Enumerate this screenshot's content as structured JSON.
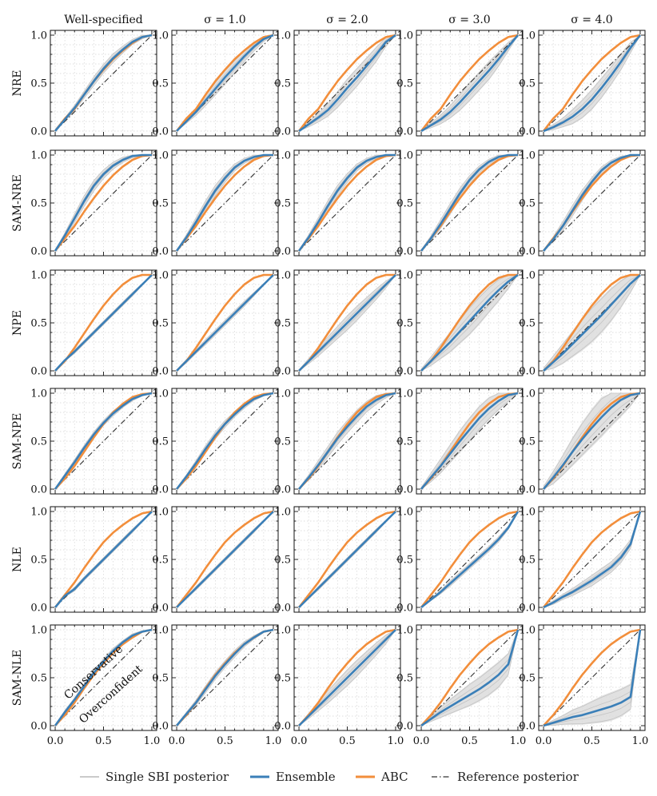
{
  "chart_data": {
    "type": "line",
    "title": "",
    "columns": [
      "Well-specified",
      "σ = 1.0",
      "σ = 2.0",
      "σ = 3.0",
      "σ = 4.0"
    ],
    "rows": [
      "NRE",
      "SAM-NRE",
      "NPE",
      "SAM-NPE",
      "NLE",
      "SAM-NLE"
    ],
    "x_ticks": [
      "0.0",
      "0.5",
      "1.0"
    ],
    "y_ticks": [
      "0.0",
      "0.5",
      "1.0"
    ],
    "xlim": [
      0,
      1
    ],
    "ylim": [
      0,
      1
    ],
    "grid": true,
    "annotations": [
      "Conservative",
      "Overconfident"
    ],
    "legend": [
      {
        "name": "Single SBI posterior",
        "color": "#b8b8b8"
      },
      {
        "name": "Ensemble",
        "color": "#3a7fb8"
      },
      {
        "name": "ABC",
        "color": "#f28e3b"
      },
      {
        "name": "Reference posterior",
        "color": "#333333"
      }
    ],
    "legend_position": "bottom",
    "x_grid": [
      0,
      0.1,
      0.2,
      0.3,
      0.4,
      0.5,
      0.6,
      0.7,
      0.8,
      0.9,
      1.0
    ],
    "abc_curves": [
      [
        [
          0,
          0
        ],
        [
          0.1,
          0.13
        ],
        [
          0.2,
          0.23
        ],
        [
          0.3,
          0.38
        ],
        [
          0.4,
          0.52
        ],
        [
          0.5,
          0.64
        ],
        [
          0.6,
          0.75
        ],
        [
          0.7,
          0.84
        ],
        [
          0.8,
          0.92
        ],
        [
          0.9,
          0.98
        ],
        [
          1,
          1
        ]
      ],
      [
        [
          0,
          0
        ],
        [
          0.1,
          0.13
        ],
        [
          0.2,
          0.26
        ],
        [
          0.3,
          0.41
        ],
        [
          0.4,
          0.55
        ],
        [
          0.5,
          0.68
        ],
        [
          0.6,
          0.79
        ],
        [
          0.7,
          0.88
        ],
        [
          0.8,
          0.95
        ],
        [
          0.9,
          0.99
        ],
        [
          1,
          1
        ]
      ],
      [
        [
          0,
          0
        ],
        [
          0.1,
          0.1
        ],
        [
          0.2,
          0.24
        ],
        [
          0.3,
          0.39
        ],
        [
          0.4,
          0.54
        ],
        [
          0.5,
          0.68
        ],
        [
          0.6,
          0.8
        ],
        [
          0.7,
          0.9
        ],
        [
          0.8,
          0.97
        ],
        [
          0.9,
          1
        ],
        [
          1,
          1
        ]
      ],
      [
        [
          0,
          0
        ],
        [
          0.1,
          0.11
        ],
        [
          0.2,
          0.24
        ],
        [
          0.3,
          0.39
        ],
        [
          0.4,
          0.54
        ],
        [
          0.5,
          0.68
        ],
        [
          0.6,
          0.8
        ],
        [
          0.7,
          0.89
        ],
        [
          0.8,
          0.96
        ],
        [
          0.9,
          0.99
        ],
        [
          1,
          1
        ]
      ],
      [
        [
          0,
          0
        ],
        [
          0.1,
          0.13
        ],
        [
          0.2,
          0.26
        ],
        [
          0.3,
          0.41
        ],
        [
          0.4,
          0.55
        ],
        [
          0.5,
          0.68
        ],
        [
          0.6,
          0.78
        ],
        [
          0.7,
          0.86
        ],
        [
          0.8,
          0.93
        ],
        [
          0.9,
          0.98
        ],
        [
          1,
          1
        ]
      ],
      [
        [
          0,
          0
        ],
        [
          0.1,
          0.11
        ],
        [
          0.2,
          0.24
        ],
        [
          0.3,
          0.39
        ],
        [
          0.4,
          0.53
        ],
        [
          0.5,
          0.65
        ],
        [
          0.6,
          0.76
        ],
        [
          0.7,
          0.85
        ],
        [
          0.8,
          0.92
        ],
        [
          0.9,
          0.98
        ],
        [
          1,
          1
        ]
      ]
    ],
    "series": [
      {
        "row": "NRE",
        "col": "Well-specified",
        "ensemble": [
          0,
          0.12,
          0.24,
          0.38,
          0.52,
          0.65,
          0.76,
          0.85,
          0.93,
          0.98,
          1
        ],
        "band": [
          0.02,
          0.02,
          0.03,
          0.04,
          0.05,
          0.05,
          0.05,
          0.04,
          0.03,
          0.02,
          0
        ]
      },
      {
        "row": "NRE",
        "col": "σ = 1.0",
        "ensemble": [
          0,
          0.1,
          0.2,
          0.32,
          0.44,
          0.56,
          0.67,
          0.78,
          0.88,
          0.96,
          1
        ],
        "band": [
          0.01,
          0.02,
          0.04,
          0.06,
          0.07,
          0.08,
          0.07,
          0.06,
          0.05,
          0.03,
          0
        ]
      },
      {
        "row": "NRE",
        "col": "σ = 2.0",
        "ensemble": [
          0,
          0.07,
          0.14,
          0.22,
          0.33,
          0.45,
          0.56,
          0.68,
          0.8,
          0.93,
          1
        ],
        "band": [
          0.01,
          0.03,
          0.05,
          0.07,
          0.09,
          0.1,
          0.1,
          0.09,
          0.08,
          0.05,
          0
        ]
      },
      {
        "row": "NRE",
        "col": "σ = 3.0",
        "ensemble": [
          0,
          0.06,
          0.12,
          0.2,
          0.3,
          0.41,
          0.52,
          0.63,
          0.75,
          0.88,
          1
        ],
        "band": [
          0.01,
          0.03,
          0.05,
          0.07,
          0.09,
          0.1,
          0.1,
          0.1,
          0.08,
          0.05,
          0
        ]
      },
      {
        "row": "NRE",
        "col": "σ = 4.0",
        "ensemble": [
          0,
          0.04,
          0.09,
          0.15,
          0.23,
          0.33,
          0.45,
          0.58,
          0.72,
          0.87,
          1
        ],
        "band": [
          0.01,
          0.03,
          0.05,
          0.08,
          0.1,
          0.11,
          0.11,
          0.1,
          0.09,
          0.06,
          0
        ]
      },
      {
        "row": "SAM-NRE",
        "col": "Well-specified",
        "ensemble": [
          0,
          0.16,
          0.34,
          0.52,
          0.68,
          0.8,
          0.89,
          0.95,
          0.99,
          1,
          1
        ],
        "band": [
          0.01,
          0.03,
          0.05,
          0.06,
          0.06,
          0.05,
          0.04,
          0.03,
          0.02,
          0.01,
          0
        ]
      },
      {
        "row": "SAM-NRE",
        "col": "σ = 1.0",
        "ensemble": [
          0,
          0.14,
          0.3,
          0.47,
          0.63,
          0.76,
          0.87,
          0.94,
          0.98,
          1,
          1
        ],
        "band": [
          0.01,
          0.03,
          0.05,
          0.06,
          0.06,
          0.05,
          0.04,
          0.03,
          0.02,
          0.01,
          0
        ]
      },
      {
        "row": "SAM-NRE",
        "col": "σ = 2.0",
        "ensemble": [
          0,
          0.14,
          0.3,
          0.47,
          0.63,
          0.76,
          0.87,
          0.94,
          0.98,
          1,
          1
        ],
        "band": [
          0.01,
          0.03,
          0.05,
          0.06,
          0.06,
          0.05,
          0.04,
          0.03,
          0.02,
          0.01,
          0
        ]
      },
      {
        "row": "SAM-NRE",
        "col": "σ = 3.0",
        "ensemble": [
          0,
          0.13,
          0.28,
          0.44,
          0.6,
          0.74,
          0.85,
          0.93,
          0.98,
          1,
          1
        ],
        "band": [
          0.01,
          0.03,
          0.05,
          0.06,
          0.06,
          0.05,
          0.04,
          0.03,
          0.02,
          0.01,
          0
        ]
      },
      {
        "row": "SAM-NRE",
        "col": "σ = 4.0",
        "ensemble": [
          0,
          0.12,
          0.26,
          0.42,
          0.58,
          0.72,
          0.84,
          0.92,
          0.97,
          1,
          1
        ],
        "band": [
          0.01,
          0.03,
          0.05,
          0.06,
          0.06,
          0.05,
          0.04,
          0.03,
          0.02,
          0.01,
          0
        ]
      },
      {
        "row": "NPE",
        "col": "Well-specified",
        "ensemble": [
          0,
          0.11,
          0.2,
          0.3,
          0.4,
          0.5,
          0.6,
          0.7,
          0.8,
          0.9,
          1
        ],
        "band": [
          0.01,
          0.01,
          0.02,
          0.02,
          0.02,
          0.02,
          0.02,
          0.02,
          0.02,
          0.01,
          0
        ]
      },
      {
        "row": "NPE",
        "col": "σ = 1.0",
        "ensemble": [
          0,
          0.1,
          0.2,
          0.3,
          0.4,
          0.5,
          0.6,
          0.7,
          0.8,
          0.9,
          1
        ],
        "band": [
          0.01,
          0.02,
          0.02,
          0.03,
          0.03,
          0.03,
          0.03,
          0.03,
          0.02,
          0.01,
          0
        ]
      },
      {
        "row": "NPE",
        "col": "σ = 2.0",
        "ensemble": [
          0,
          0.1,
          0.2,
          0.3,
          0.4,
          0.5,
          0.6,
          0.7,
          0.8,
          0.9,
          1
        ],
        "band": [
          0.01,
          0.03,
          0.05,
          0.06,
          0.07,
          0.08,
          0.08,
          0.07,
          0.06,
          0.04,
          0
        ]
      },
      {
        "row": "NPE",
        "col": "σ = 3.0",
        "ensemble": [
          0,
          0.1,
          0.2,
          0.3,
          0.41,
          0.52,
          0.63,
          0.74,
          0.84,
          0.93,
          1
        ],
        "band": [
          0.02,
          0.05,
          0.08,
          0.11,
          0.13,
          0.15,
          0.15,
          0.14,
          0.12,
          0.08,
          0
        ]
      },
      {
        "row": "NPE",
        "col": "σ = 4.0",
        "ensemble": [
          0,
          0.09,
          0.18,
          0.28,
          0.38,
          0.48,
          0.58,
          0.69,
          0.8,
          0.91,
          1
        ],
        "band": [
          0.03,
          0.07,
          0.11,
          0.14,
          0.17,
          0.19,
          0.19,
          0.18,
          0.15,
          0.1,
          0
        ]
      },
      {
        "row": "SAM-NPE",
        "col": "Well-specified",
        "ensemble": [
          0,
          0.14,
          0.28,
          0.43,
          0.57,
          0.69,
          0.79,
          0.87,
          0.94,
          0.98,
          1
        ],
        "band": [
          0.01,
          0.02,
          0.03,
          0.03,
          0.03,
          0.03,
          0.03,
          0.02,
          0.02,
          0.01,
          0
        ]
      },
      {
        "row": "SAM-NPE",
        "col": "σ = 1.0",
        "ensemble": [
          0,
          0.13,
          0.27,
          0.42,
          0.56,
          0.68,
          0.78,
          0.87,
          0.94,
          0.98,
          1
        ],
        "band": [
          0.01,
          0.02,
          0.03,
          0.04,
          0.04,
          0.04,
          0.03,
          0.03,
          0.02,
          0.01,
          0
        ]
      },
      {
        "row": "SAM-NPE",
        "col": "σ = 2.0",
        "ensemble": [
          0,
          0.12,
          0.25,
          0.39,
          0.53,
          0.65,
          0.76,
          0.86,
          0.93,
          0.98,
          1
        ],
        "band": [
          0.01,
          0.03,
          0.05,
          0.06,
          0.07,
          0.07,
          0.07,
          0.06,
          0.05,
          0.03,
          0
        ]
      },
      {
        "row": "SAM-NPE",
        "col": "σ = 3.0",
        "ensemble": [
          0,
          0.12,
          0.24,
          0.37,
          0.5,
          0.62,
          0.74,
          0.84,
          0.92,
          0.98,
          1
        ],
        "band": [
          0.02,
          0.05,
          0.08,
          0.1,
          0.12,
          0.13,
          0.13,
          0.12,
          0.1,
          0.07,
          0
        ]
      },
      {
        "row": "SAM-NPE",
        "col": "σ = 4.0",
        "ensemble": [
          0,
          0.12,
          0.25,
          0.39,
          0.52,
          0.64,
          0.75,
          0.85,
          0.93,
          0.98,
          1
        ],
        "band": [
          0.03,
          0.07,
          0.11,
          0.15,
          0.18,
          0.2,
          0.21,
          0.2,
          0.18,
          0.12,
          0
        ]
      },
      {
        "row": "NLE",
        "col": "Well-specified",
        "ensemble": [
          0,
          0.12,
          0.19,
          0.3,
          0.4,
          0.5,
          0.6,
          0.7,
          0.8,
          0.9,
          1
        ],
        "band": [
          0.01,
          0.01,
          0.02,
          0.02,
          0.02,
          0.02,
          0.02,
          0.02,
          0.02,
          0.01,
          0
        ]
      },
      {
        "row": "NLE",
        "col": "σ = 1.0",
        "ensemble": [
          0,
          0.1,
          0.2,
          0.3,
          0.4,
          0.5,
          0.6,
          0.7,
          0.8,
          0.9,
          1
        ],
        "band": [
          0.01,
          0.01,
          0.02,
          0.02,
          0.02,
          0.02,
          0.02,
          0.02,
          0.02,
          0.01,
          0
        ]
      },
      {
        "row": "NLE",
        "col": "σ = 2.0",
        "ensemble": [
          0,
          0.1,
          0.2,
          0.3,
          0.4,
          0.5,
          0.6,
          0.7,
          0.8,
          0.9,
          1
        ],
        "band": [
          0.01,
          0.01,
          0.02,
          0.02,
          0.02,
          0.02,
          0.02,
          0.02,
          0.02,
          0.01,
          0
        ]
      },
      {
        "row": "NLE",
        "col": "σ = 3.0",
        "ensemble": [
          0,
          0.08,
          0.16,
          0.25,
          0.34,
          0.43,
          0.52,
          0.61,
          0.71,
          0.83,
          1
        ],
        "band": [
          0.01,
          0.01,
          0.02,
          0.03,
          0.03,
          0.03,
          0.03,
          0.03,
          0.03,
          0.02,
          0
        ]
      },
      {
        "row": "NLE",
        "col": "σ = 4.0",
        "ensemble": [
          0,
          0.05,
          0.11,
          0.16,
          0.22,
          0.28,
          0.35,
          0.42,
          0.52,
          0.66,
          1
        ],
        "band": [
          0.01,
          0.02,
          0.03,
          0.04,
          0.05,
          0.06,
          0.06,
          0.06,
          0.06,
          0.05,
          0
        ]
      },
      {
        "row": "SAM-NLE",
        "col": "Well-specified",
        "ensemble": [
          0,
          0.14,
          0.27,
          0.41,
          0.55,
          0.67,
          0.78,
          0.87,
          0.94,
          0.98,
          1
        ],
        "band": [
          0.01,
          0.02,
          0.02,
          0.03,
          0.03,
          0.03,
          0.03,
          0.02,
          0.02,
          0.01,
          0
        ]
      },
      {
        "row": "SAM-NLE",
        "col": "σ = 1.0",
        "ensemble": [
          0,
          0.12,
          0.24,
          0.38,
          0.52,
          0.64,
          0.75,
          0.85,
          0.92,
          0.98,
          1
        ],
        "band": [
          0.01,
          0.02,
          0.03,
          0.04,
          0.04,
          0.04,
          0.04,
          0.03,
          0.02,
          0.01,
          0
        ]
      },
      {
        "row": "SAM-NLE",
        "col": "σ = 2.0",
        "ensemble": [
          0,
          0.1,
          0.2,
          0.3,
          0.4,
          0.5,
          0.6,
          0.7,
          0.8,
          0.9,
          1
        ],
        "band": [
          0.01,
          0.03,
          0.05,
          0.07,
          0.08,
          0.09,
          0.09,
          0.08,
          0.07,
          0.05,
          0
        ]
      },
      {
        "row": "SAM-NLE",
        "col": "σ = 3.0",
        "ensemble": [
          0,
          0.07,
          0.14,
          0.2,
          0.26,
          0.32,
          0.38,
          0.45,
          0.53,
          0.64,
          1
        ],
        "band": [
          0.01,
          0.03,
          0.06,
          0.08,
          0.1,
          0.12,
          0.13,
          0.14,
          0.14,
          0.12,
          0
        ]
      },
      {
        "row": "SAM-NLE",
        "col": "σ = 4.0",
        "ensemble": [
          0,
          0.03,
          0.06,
          0.09,
          0.11,
          0.14,
          0.17,
          0.2,
          0.24,
          0.3,
          1
        ],
        "band": [
          0.01,
          0.03,
          0.05,
          0.08,
          0.1,
          0.12,
          0.14,
          0.15,
          0.15,
          0.14,
          0
        ]
      }
    ]
  }
}
